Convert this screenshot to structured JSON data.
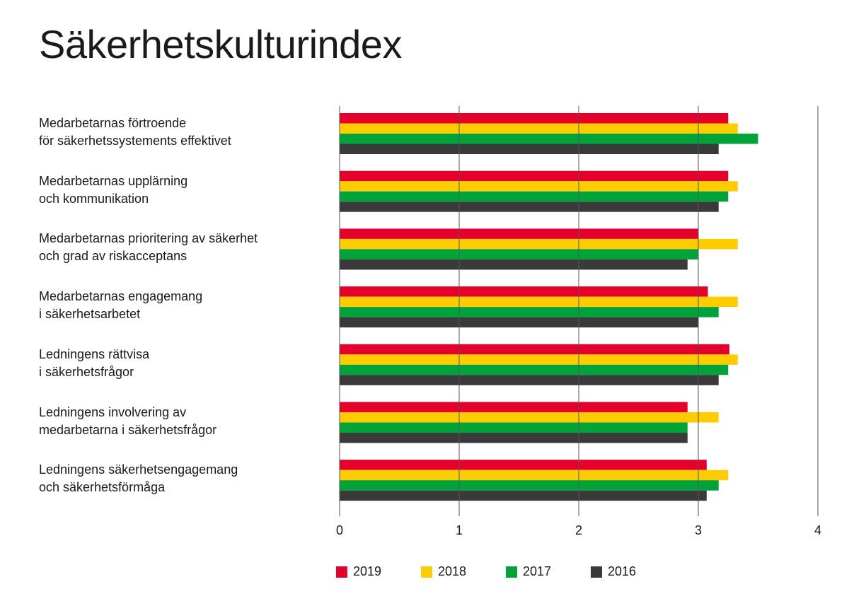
{
  "title": "Säkerhetskulturindex",
  "chart_data": {
    "type": "bar",
    "orientation": "horizontal",
    "title": "Säkerhetskulturindex",
    "xlim": [
      0,
      4
    ],
    "ticks": [
      "0",
      "1",
      "2",
      "3",
      "4"
    ],
    "grid": true,
    "legend_position": "bottom",
    "categories": [
      [
        "Medarbetarnas förtroende",
        "för säkerhetssystements effektivet"
      ],
      [
        "Medarbetarnas upplärning",
        "och kommunikation"
      ],
      [
        "Medarbetarnas prioritering av säkerhet",
        "och grad av riskacceptans"
      ],
      [
        "Medarbetarnas engagemang",
        "i säkerhetsarbetet"
      ],
      [
        "Ledningens rättvisa",
        "i säkerhetsfrågor"
      ],
      [
        "Ledningens involvering av",
        "medarbetarna i säkerhetsfrågor"
      ],
      [
        "Ledningens säkerhetsengagemang",
        "och säkerhetsförmåga"
      ]
    ],
    "series": [
      {
        "name": "2019",
        "color": "#e4002b",
        "values": [
          3.25,
          3.25,
          3.0,
          3.08,
          3.26,
          2.91,
          3.07
        ]
      },
      {
        "name": "2018",
        "color": "#ffcc00",
        "values": [
          3.33,
          3.33,
          3.33,
          3.33,
          3.33,
          3.17,
          3.25
        ]
      },
      {
        "name": "2017",
        "color": "#00a23a",
        "values": [
          3.5,
          3.25,
          3.0,
          3.17,
          3.25,
          2.91,
          3.17
        ]
      },
      {
        "name": "2016",
        "color": "#3a3a3a",
        "values": [
          3.17,
          3.17,
          2.91,
          3.0,
          3.17,
          2.91,
          3.07
        ]
      }
    ]
  }
}
